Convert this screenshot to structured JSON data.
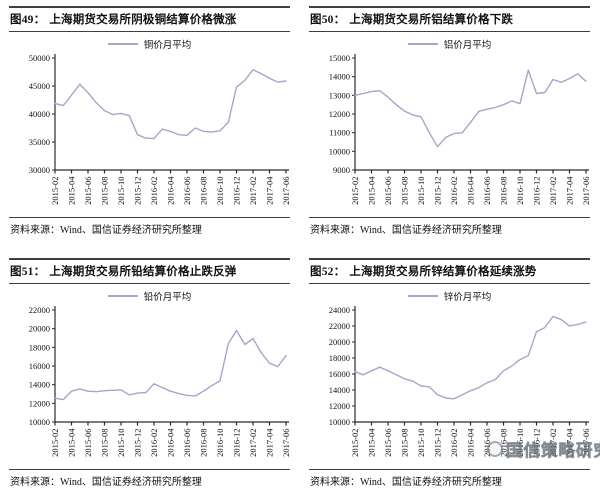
{
  "line_color": "#a5a5cd",
  "axis_color": "#2a2a2a",
  "source_note": "资料来源：Wind、国信证券经济研究所整理",
  "watermark": {
    "text": "国信策略研究",
    "logo": "guosen-circle-logo"
  },
  "months": [
    "2015-02",
    "2015-03",
    "2015-04",
    "2015-05",
    "2015-06",
    "2015-07",
    "2015-08",
    "2015-09",
    "2015-10",
    "2015-11",
    "2015-12",
    "2016-01",
    "2016-02",
    "2016-03",
    "2016-04",
    "2016-05",
    "2016-06",
    "2016-07",
    "2016-08",
    "2016-09",
    "2016-10",
    "2016-11",
    "2016-12",
    "2017-01",
    "2017-02",
    "2017-03",
    "2017-04",
    "2017-05",
    "2017-06"
  ],
  "label_every": 2,
  "x_tick_labels": [
    "2015-02",
    "2015-04",
    "2015-06",
    "2015-08",
    "2015-10",
    "2015-12",
    "2016-02",
    "2016-04",
    "2016-06",
    "2016-08",
    "2016-10",
    "2016-12",
    "2017-02",
    "2017-04",
    "2017-06"
  ],
  "chart_data": [
    {
      "type": "line",
      "fig_no": "图49：",
      "title": "上海期货交易所阴极铜结算价格微涨",
      "legend": "铜价月平均",
      "ylim": [
        30000,
        50000
      ],
      "ystep": 5000,
      "yticks": [
        30000,
        35000,
        40000,
        45000,
        50000
      ],
      "values": [
        41900,
        41500,
        43400,
        45300,
        43800,
        42000,
        40600,
        39900,
        40100,
        39700,
        36300,
        35700,
        35600,
        37300,
        36900,
        36300,
        36200,
        37500,
        36900,
        36800,
        37000,
        38500,
        44800,
        46000,
        47900,
        47200,
        46400,
        45700,
        45900
      ]
    },
    {
      "type": "line",
      "fig_no": "图50：",
      "title": "上海期货交易所铝结算价格下跌",
      "legend": "铝价月平均",
      "ylim": [
        9000,
        15000
      ],
      "ystep": 1000,
      "yticks": [
        9000,
        10000,
        11000,
        12000,
        13000,
        14000,
        15000
      ],
      "values": [
        13000,
        13100,
        13200,
        13250,
        12900,
        12500,
        12150,
        11950,
        11850,
        11000,
        10250,
        10750,
        10950,
        11000,
        11550,
        12150,
        12250,
        12350,
        12500,
        12700,
        12550,
        14350,
        13100,
        13150,
        13850,
        13700,
        13900,
        14150,
        13750
      ]
    },
    {
      "type": "line",
      "fig_no": "图51：",
      "title": "上海期货交易所铅结算价格止跌反弹",
      "legend": "铅价月平均",
      "ylim": [
        10000,
        22000
      ],
      "ystep": 2000,
      "yticks": [
        10000,
        12000,
        14000,
        16000,
        18000,
        20000,
        22000
      ],
      "values": [
        12550,
        12400,
        13300,
        13550,
        13300,
        13250,
        13350,
        13400,
        13450,
        12900,
        13100,
        13150,
        14100,
        13700,
        13300,
        13050,
        12850,
        12800,
        13300,
        13900,
        14400,
        18400,
        19800,
        18300,
        18950,
        17400,
        16300,
        15950,
        17100
      ]
    },
    {
      "type": "line",
      "fig_no": "图52：",
      "title": "上海期货交易所锌结算价格延续涨势",
      "legend": "锌价月平均",
      "ylim": [
        10000,
        24000
      ],
      "ystep": 2000,
      "yticks": [
        10000,
        12000,
        14000,
        16000,
        18000,
        20000,
        22000,
        24000
      ],
      "values": [
        16300,
        15900,
        16400,
        16850,
        16400,
        15900,
        15400,
        15100,
        14500,
        14400,
        13400,
        13000,
        12900,
        13400,
        13900,
        14300,
        14900,
        15300,
        16400,
        17000,
        17800,
        18300,
        21300,
        21800,
        23200,
        22800,
        22000,
        22200,
        22500
      ]
    }
  ]
}
